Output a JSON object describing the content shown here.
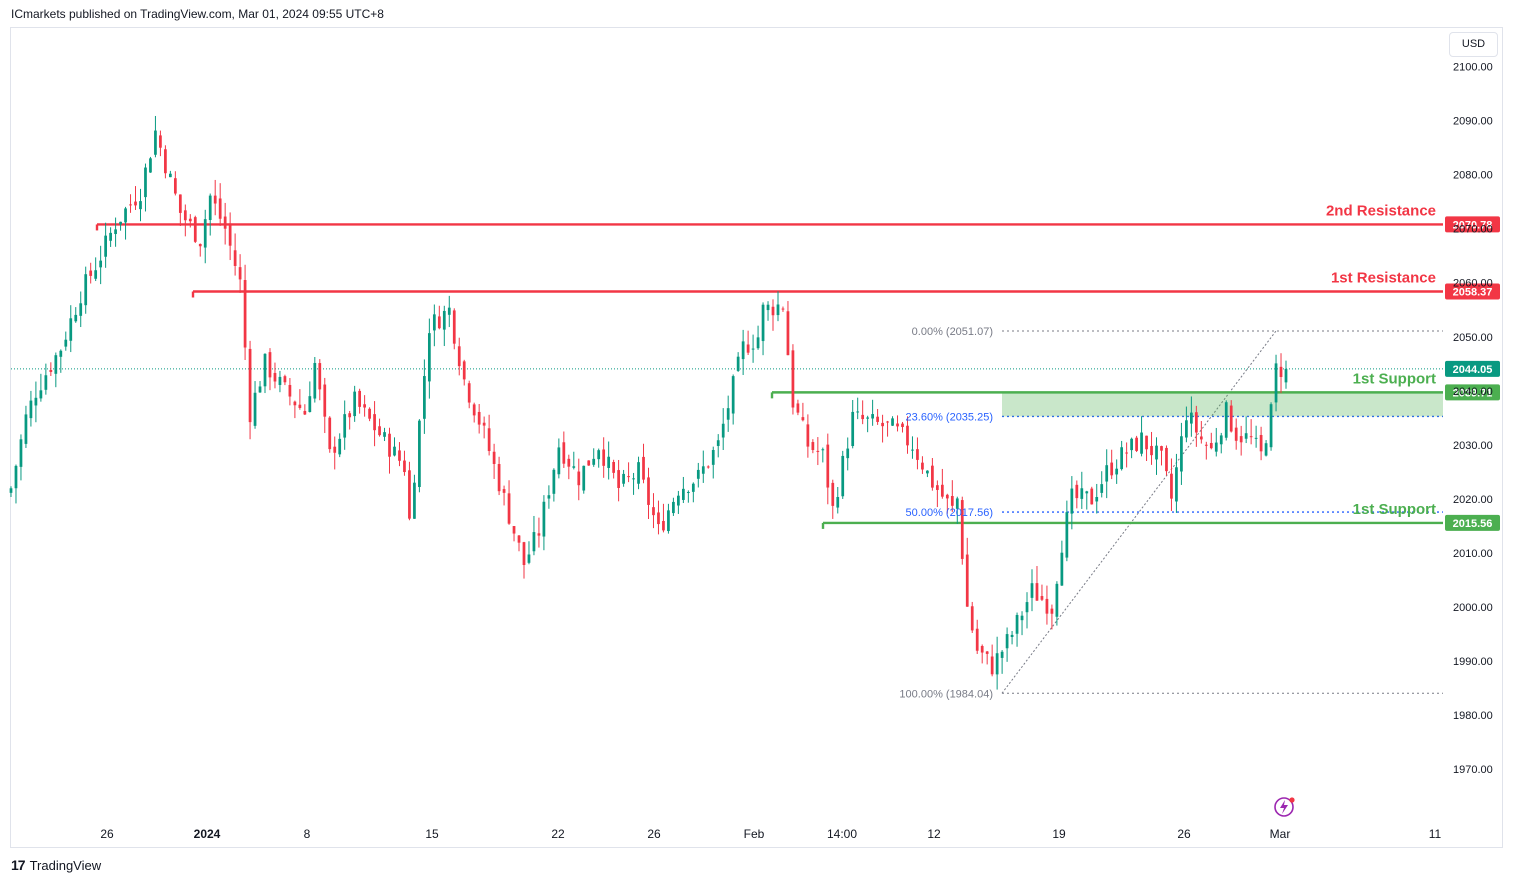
{
  "header": {
    "publisher": "ICmarkets published on TradingView.com, Mar 01, 2024 09:55 UTC+8"
  },
  "footer": {
    "brand": "TradingView",
    "logo": "17"
  },
  "currency": "USD",
  "colors": {
    "up": "#089981",
    "down": "#f23645",
    "resistance": "#f23645",
    "support": "#4caf50",
    "fib": "#2962ff"
  },
  "chart_data": {
    "type": "candlestick",
    "symbol_currency": "USD",
    "ylim": [
      1962,
      2109
    ],
    "y_ticks": [
      1970,
      1980,
      1990,
      2000,
      2010,
      2020,
      2030,
      2040,
      2050,
      2060,
      2070,
      2080,
      2090,
      2100
    ],
    "x_ticks": [
      {
        "label": "26",
        "bold": false
      },
      {
        "label": "2024",
        "bold": true
      },
      {
        "label": "8",
        "bold": false
      },
      {
        "label": "15",
        "bold": false
      },
      {
        "label": "22",
        "bold": false
      },
      {
        "label": "26",
        "bold": false
      },
      {
        "label": "Feb",
        "bold": false
      },
      {
        "label": "14:00",
        "bold": false
      },
      {
        "label": "12",
        "bold": false
      },
      {
        "label": "19",
        "bold": false
      },
      {
        "label": "26",
        "bold": false
      },
      {
        "label": "Mar",
        "bold": false
      },
      {
        "label": "11",
        "bold": false
      }
    ],
    "price_path": [
      [
        0,
        2022
      ],
      [
        3,
        2035
      ],
      [
        5,
        2040
      ],
      [
        10,
        2048
      ],
      [
        14,
        2058
      ],
      [
        18,
        2065
      ],
      [
        21,
        2071
      ],
      [
        26,
        2077
      ],
      [
        29,
        2088
      ],
      [
        34,
        2073
      ],
      [
        38,
        2068
      ],
      [
        40,
        2076
      ],
      [
        43,
        2070
      ],
      [
        46,
        2060
      ],
      [
        48,
        2036
      ],
      [
        51,
        2045
      ],
      [
        55,
        2040
      ],
      [
        59,
        2036
      ],
      [
        61,
        2045
      ],
      [
        64,
        2028
      ],
      [
        69,
        2038
      ],
      [
        74,
        2032
      ],
      [
        79,
        2026
      ],
      [
        80,
        2016
      ],
      [
        84,
        2052
      ],
      [
        88,
        2055
      ],
      [
        91,
        2042
      ],
      [
        95,
        2032
      ],
      [
        99,
        2020
      ],
      [
        103,
        2008
      ],
      [
        106,
        2014
      ],
      [
        110,
        2030
      ],
      [
        114,
        2024
      ],
      [
        118,
        2030
      ],
      [
        122,
        2022
      ],
      [
        126,
        2025
      ],
      [
        130,
        2014
      ],
      [
        134,
        2022
      ],
      [
        138,
        2024
      ],
      [
        142,
        2030
      ],
      [
        147,
        2048
      ],
      [
        150,
        2050
      ],
      [
        151,
        2055
      ],
      [
        155,
        2056
      ],
      [
        157,
        2038
      ],
      [
        160,
        2030
      ],
      [
        163,
        2028
      ],
      [
        165,
        2018
      ],
      [
        169,
        2035
      ],
      [
        173,
        2034
      ],
      [
        177,
        2033
      ],
      [
        181,
        2030
      ],
      [
        185,
        2023
      ],
      [
        189,
        2018
      ],
      [
        190,
        2020
      ],
      [
        192,
        2000
      ],
      [
        194,
        1992
      ],
      [
        197,
        1989
      ],
      [
        201,
        1995
      ],
      [
        205,
        2003
      ],
      [
        209,
        2000
      ],
      [
        211,
        2012
      ],
      [
        213,
        2020
      ],
      [
        217,
        2020
      ],
      [
        220,
        2025
      ],
      [
        223,
        2028
      ],
      [
        227,
        2031
      ],
      [
        231,
        2027
      ],
      [
        233,
        2020
      ],
      [
        236,
        2036
      ],
      [
        239,
        2031
      ],
      [
        241,
        2029
      ],
      [
        244,
        2036
      ],
      [
        246,
        2032
      ],
      [
        249,
        2031
      ],
      [
        251,
        2028
      ],
      [
        253,
        2036
      ],
      [
        254,
        2044
      ],
      [
        256,
        2044.05
      ]
    ],
    "last_price": 2044.05,
    "levels": [
      {
        "name": "2nd Resistance",
        "value": 2070.78,
        "label": "2070.78",
        "kind": "resistance"
      },
      {
        "name": "1st Resistance",
        "value": 2058.37,
        "label": "2058.37",
        "kind": "resistance"
      },
      {
        "name": "1st Support",
        "value": 2039.71,
        "label": "2039.71",
        "kind": "support"
      },
      {
        "name": "1st Support",
        "value": 2015.56,
        "label": "2015.56",
        "kind": "support"
      }
    ],
    "fib_levels": [
      {
        "label": "0.00% (2051.07)",
        "value": 2051.07
      },
      {
        "label": "23.60% (2035.25)",
        "value": 2035.25
      },
      {
        "label": "50.00% (2017.56)",
        "value": 2017.56
      },
      {
        "label": "100.00% (1984.04)",
        "value": 1984.04
      }
    ],
    "support_zone": [
      2035.25,
      2039.71
    ]
  }
}
